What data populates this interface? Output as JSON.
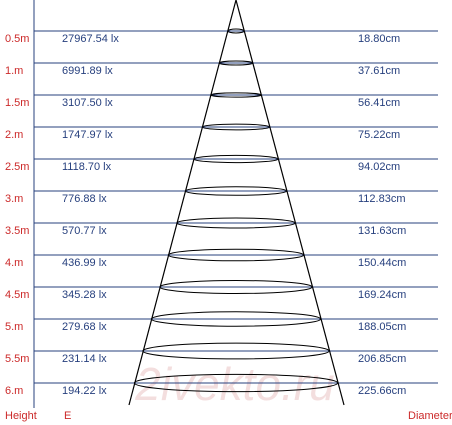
{
  "watermark": "2ivekto.ru",
  "footer": {
    "height_label": "Height",
    "e_label": "E",
    "diameter_label": "Diameter"
  },
  "rows": [
    {
      "height": "0.5m",
      "lux": "27967.54 lx",
      "diameter": "18.80cm"
    },
    {
      "height": "1.m",
      "lux": "6991.89 lx",
      "diameter": "37.61cm"
    },
    {
      "height": "1.5m",
      "lux": "3107.50 lx",
      "diameter": "56.41cm"
    },
    {
      "height": "2.m",
      "lux": "1747.97 lx",
      "diameter": "75.22cm"
    },
    {
      "height": "2.5m",
      "lux": "1118.70 lx",
      "diameter": "94.02cm"
    },
    {
      "height": "3.m",
      "lux": "776.88 lx",
      "diameter": "112.83cm"
    },
    {
      "height": "3.5m",
      "lux": "570.77 lx",
      "diameter": "131.63cm"
    },
    {
      "height": "4.m",
      "lux": "436.99 lx",
      "diameter": "150.44cm"
    },
    {
      "height": "4.5m",
      "lux": "345.28 lx",
      "diameter": "169.24cm"
    },
    {
      "height": "5.m",
      "lux": "279.68 lx",
      "diameter": "188.05cm"
    },
    {
      "height": "5.5m",
      "lux": "231.14 lx",
      "diameter": "206.85cm"
    },
    {
      "height": "6.m",
      "lux": "194.22 lx",
      "diameter": "225.66cm"
    }
  ]
}
